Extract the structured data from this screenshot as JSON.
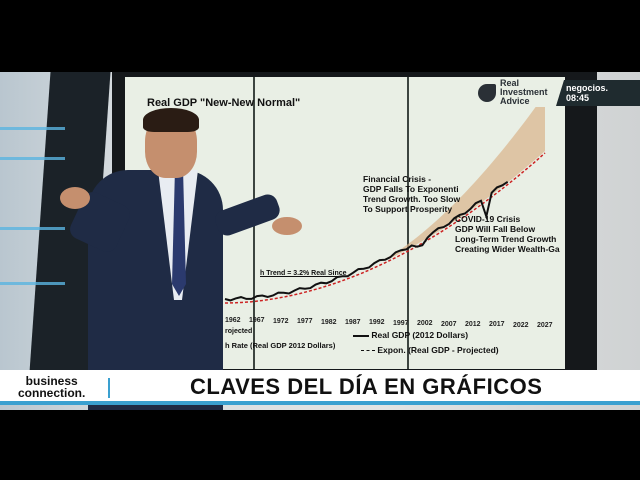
{
  "broadcast": {
    "channel": "negocios.",
    "time": "08:45",
    "program_line1": "business",
    "program_line2": "connection.",
    "headline": "CLAVES DEL DÍA EN GRÁFICOS"
  },
  "screen_chart": {
    "title": "Real GDP \"New-New Normal\"",
    "logo_line1": "Real",
    "logo_line2": "Investment",
    "logo_line3": "Advice",
    "annotation_financial": [
      "Financial Crisis -",
      "GDP Falls To Exponenti",
      "Trend Growth. Too Slow",
      "To Support Prosperity"
    ],
    "annotation_covid": [
      "COVID-19 Crisis",
      "GDP Will Fall Below",
      "Long-Term Trend Growth",
      "Creating Wider Wealth-Ga"
    ],
    "trend_label": "h Trend = 3.2% Real Since",
    "years": [
      "1962",
      "1967",
      "1972",
      "1977",
      "1982",
      "1987",
      "1992",
      "1997",
      "2002",
      "2007",
      "2012",
      "2017",
      "2022",
      "2027"
    ],
    "legend_left1": "rojected",
    "legend_left2": "h Rate (Real GDP 2012 Dollars)",
    "legend_real": "Real GDP (2012 Dollars)",
    "legend_expon": "Expon. (Real GDP - Projected)",
    "colors": {
      "real": "#111111",
      "projected": "#cc2222",
      "band": "#d9b48a"
    }
  }
}
